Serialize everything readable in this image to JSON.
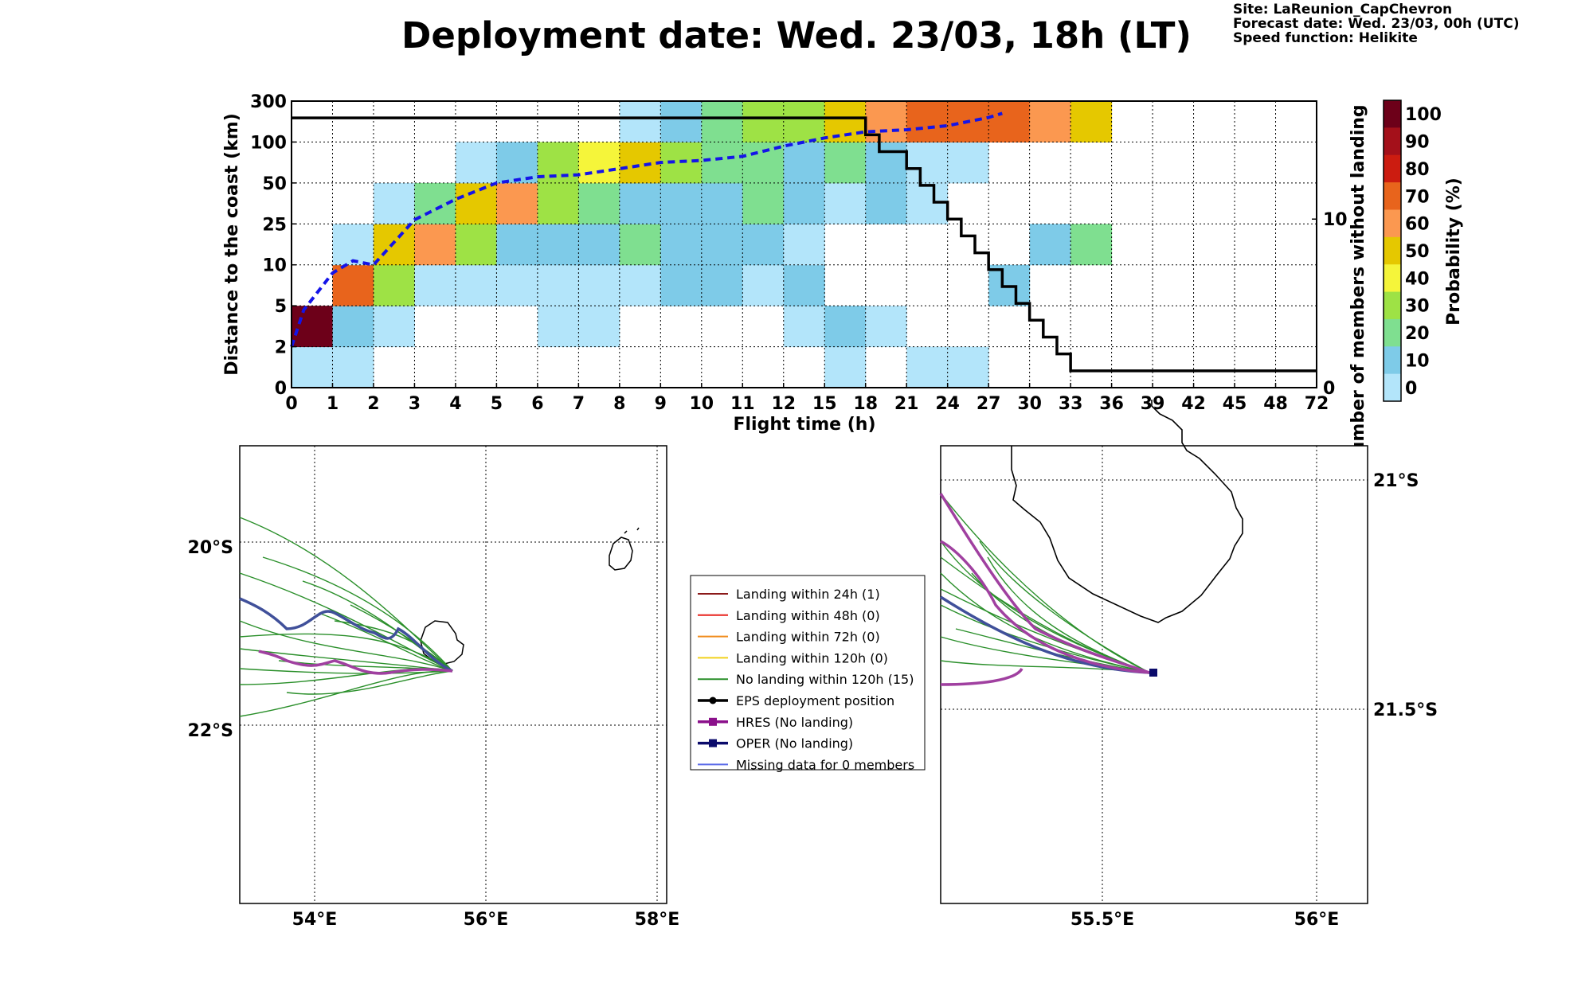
{
  "title": "Deployment date: Wed. 23/03, 18h (LT)",
  "meta": {
    "site": "Site: LaReunion_CapChevron",
    "forecast": "Forecast date: Wed. 23/03, 00h (UTC)",
    "speed": "Speed function: Helikite"
  },
  "chart_data": [
    {
      "type": "heatmap",
      "xlabel": "Flight time (h)",
      "ylabel": "Distance to the coast (km)",
      "ylabel_right": "Number of members without landing",
      "colorbar_label": "Probability (%)",
      "x_ticks": [
        "0",
        "1",
        "2",
        "3",
        "4",
        "5",
        "6",
        "7",
        "8",
        "9",
        "10",
        "11",
        "12",
        "15",
        "18",
        "21",
        "24",
        "27",
        "30",
        "33",
        "36",
        "39",
        "42",
        "45",
        "48",
        "72"
      ],
      "y_ticks": [
        "0",
        "2",
        "5",
        "10",
        "25",
        "50",
        "100",
        "300"
      ],
      "y_right_ticks": [
        "0",
        "10"
      ],
      "colorbar_ticks": [
        "0",
        "10",
        "20",
        "30",
        "40",
        "50",
        "60",
        "70",
        "80",
        "90",
        "100"
      ],
      "colorbar_colors": [
        "#b3e5fa",
        "#7ecbe8",
        "#7fdf90",
        "#9ee245",
        "#f5f53a",
        "#e5c800",
        "#fb9850",
        "#e8641c",
        "#cc1c10",
        "#a4101a",
        "#6d0019"
      ],
      "cell_grid_rows_bottom_to_top": [
        [
          0,
          0,
          null,
          null,
          null,
          null,
          null,
          null,
          null,
          null,
          null,
          null,
          null,
          0,
          null,
          0,
          0,
          null,
          null,
          null,
          null,
          null,
          null,
          null,
          null
        ],
        [
          10,
          1,
          0,
          null,
          null,
          null,
          0,
          0,
          null,
          null,
          null,
          null,
          0,
          1,
          0,
          null,
          null,
          null,
          null,
          null,
          null,
          null,
          null,
          null,
          null
        ],
        [
          null,
          7,
          3,
          0,
          0,
          0,
          0,
          0,
          0,
          1,
          1,
          0,
          1,
          null,
          null,
          null,
          null,
          1,
          null,
          null,
          null,
          null,
          null,
          null,
          null
        ],
        [
          null,
          0,
          5,
          6,
          3,
          1,
          1,
          1,
          2,
          1,
          1,
          1,
          0,
          null,
          null,
          null,
          null,
          null,
          1,
          2,
          null,
          null,
          null,
          null,
          null
        ],
        [
          null,
          null,
          0,
          2,
          5,
          6,
          3,
          2,
          1,
          1,
          1,
          2,
          1,
          0,
          1,
          0,
          null,
          null,
          null,
          null,
          null,
          null,
          null,
          null,
          null
        ],
        [
          null,
          null,
          null,
          null,
          0,
          1,
          3,
          4,
          5,
          3,
          2,
          2,
          1,
          2,
          1,
          0,
          0,
          null,
          null,
          null,
          null,
          null,
          null,
          null,
          null
        ],
        [
          null,
          null,
          null,
          null,
          null,
          null,
          null,
          null,
          0,
          1,
          2,
          3,
          3,
          5,
          6,
          7,
          7,
          7,
          6,
          5,
          null,
          null,
          null,
          null,
          null
        ]
      ],
      "median_distance_curve": {
        "x": [
          0,
          0.3,
          1,
          1.5,
          2,
          3,
          4,
          5,
          6,
          7,
          8,
          9,
          10,
          11,
          12,
          15,
          18,
          21,
          24,
          27,
          28
        ],
        "y_band": [
          1,
          1.9,
          2.8,
          3.1,
          3.0,
          4.1,
          4.6,
          5.0,
          5.15,
          5.2,
          5.35,
          5.5,
          5.55,
          5.65,
          5.9,
          6.1,
          6.25,
          6.3,
          6.4,
          6.6,
          6.7
        ]
      },
      "members_without_landing_step": {
        "x": [
          0,
          17,
          18,
          19,
          21,
          22,
          23,
          24,
          25,
          26,
          27,
          28,
          29,
          30,
          31,
          32,
          33,
          34,
          36,
          72
        ],
        "y": [
          16,
          16,
          15,
          14,
          13,
          12,
          11,
          10,
          9,
          8,
          7,
          6,
          5,
          4,
          3,
          2,
          1,
          1,
          1,
          1
        ]
      },
      "ylim_right": [
        0,
        17
      ]
    },
    {
      "type": "map",
      "x_ticks": [
        "54°E",
        "56°E",
        "58°E"
      ],
      "y_ticks": [
        "20°S",
        "22°S"
      ],
      "legend": [
        {
          "label": "Landing within 24h (1)",
          "color": "#8b1a1a"
        },
        {
          "label": "Landing within 48h (0)",
          "color": "#e8221c"
        },
        {
          "label": "Landing within 72h (0)",
          "color": "#f08c1c"
        },
        {
          "label": "Landing within 120h (0)",
          "color": "#f2d21c"
        },
        {
          "label": "No landing within 120h (15)",
          "color": "#2a8f2a"
        },
        {
          "label": "EPS deployment position",
          "color": "#000000"
        },
        {
          "label": "HRES (No landing)",
          "color": "#8b108b"
        },
        {
          "label": "OPER (No landing)",
          "color": "#0b0b6b"
        },
        {
          "label": "Missing data for 0 members",
          "color": "#5a6ae8"
        }
      ]
    },
    {
      "type": "map",
      "x_ticks": [
        "55.5°E",
        "56°E"
      ],
      "y_ticks": [
        "21°S",
        "21.5°S"
      ]
    }
  ]
}
